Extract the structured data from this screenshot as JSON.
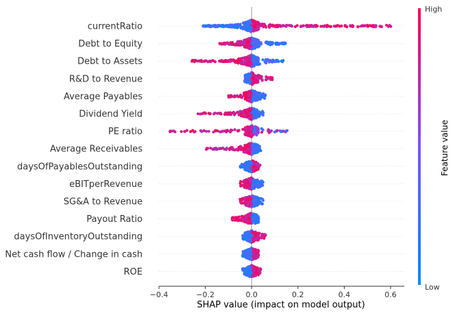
{
  "chart_data": {
    "type": "scatter",
    "subtype": "shap-beeswarm-summary",
    "xlabel": "SHAP value (impact on model output)",
    "xlim": [
      -0.4,
      0.65
    ],
    "xticks": [
      -0.4,
      -0.2,
      0.0,
      0.2,
      0.4,
      0.6
    ],
    "xtick_labels": [
      "−0.4",
      "−0.2",
      "0.0",
      "0.2",
      "0.4",
      "0.6"
    ],
    "zero_line": true,
    "grid": false,
    "colorbar": {
      "label": "Feature value",
      "high_label": "High",
      "low_label": "Low",
      "low_color": "#008bfb",
      "high_color": "#ff0052"
    },
    "features": [
      {
        "name": "currentRatio",
        "min": -0.21,
        "max": 0.61,
        "neg_color": "low",
        "pos_color": "high",
        "density": "heavy"
      },
      {
        "name": "Debt to Equity",
        "min": -0.14,
        "max": 0.15,
        "neg_color": "high",
        "pos_color": "low",
        "density": "medium"
      },
      {
        "name": "Debt to Assets",
        "min": -0.26,
        "max": 0.14,
        "neg_color": "high",
        "pos_color": "low",
        "density": "medium"
      },
      {
        "name": "R&D to Revenue",
        "min": -0.03,
        "max": 0.09,
        "neg_color": "low",
        "pos_color": "high",
        "density": "light"
      },
      {
        "name": "Average Payables",
        "min": -0.1,
        "max": 0.06,
        "neg_color": "high",
        "pos_color": "low",
        "density": "light"
      },
      {
        "name": "Dividend Yield",
        "min": -0.24,
        "max": 0.05,
        "neg_color": "high",
        "pos_color": "low",
        "density": "light"
      },
      {
        "name": "PE ratio",
        "min": -0.36,
        "max": 0.16,
        "neg_color": "high",
        "pos_color": "mixed",
        "density": "light"
      },
      {
        "name": "Average Receivables",
        "min": -0.2,
        "max": 0.04,
        "neg_color": "high",
        "pos_color": "low",
        "density": "light"
      },
      {
        "name": "daysOfPayablesOutstanding",
        "min": -0.05,
        "max": 0.04,
        "neg_color": "low",
        "pos_color": "high",
        "density": "light"
      },
      {
        "name": "eBITperRevenue",
        "min": -0.05,
        "max": 0.05,
        "neg_color": "high",
        "pos_color": "low",
        "density": "light"
      },
      {
        "name": "SG&A to Revenue",
        "min": -0.05,
        "max": 0.05,
        "neg_color": "high",
        "pos_color": "low",
        "density": "light"
      },
      {
        "name": "Payout Ratio",
        "min": -0.09,
        "max": 0.03,
        "neg_color": "high",
        "pos_color": "low",
        "density": "light"
      },
      {
        "name": "daysOfInventoryOutstanding",
        "min": -0.04,
        "max": 0.07,
        "neg_color": "low",
        "pos_color": "high",
        "density": "light"
      },
      {
        "name": "Net cash flow / Change in cash",
        "min": -0.04,
        "max": 0.03,
        "neg_color": "low",
        "pos_color": "high",
        "density": "light"
      },
      {
        "name": "ROE",
        "min": -0.04,
        "max": 0.04,
        "neg_color": "low",
        "pos_color": "high",
        "density": "light"
      }
    ]
  }
}
